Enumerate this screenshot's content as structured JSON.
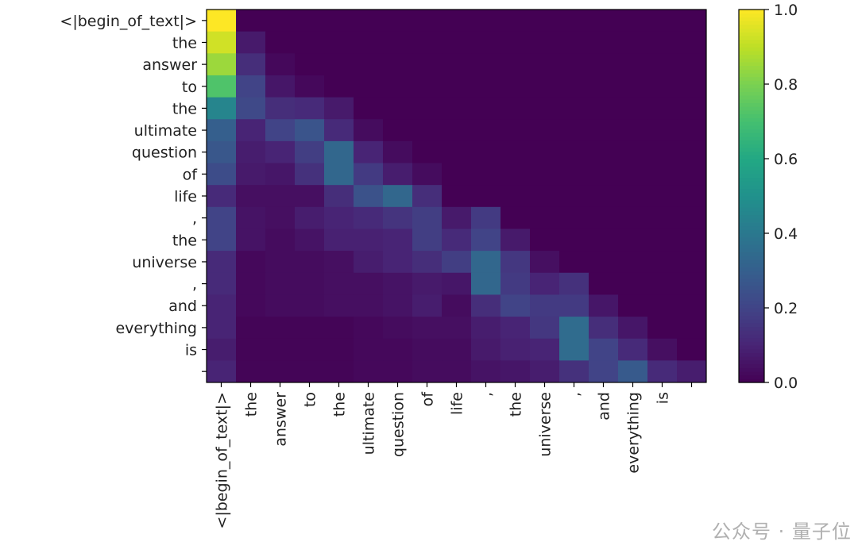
{
  "chart_data": {
    "type": "heatmap",
    "colormap": "viridis",
    "tokens": [
      "<|begin_of_text|>",
      "the",
      "answer",
      "to",
      "the",
      "ultimate",
      "question",
      "of",
      "life",
      ",",
      "the",
      "universe",
      ",",
      "and",
      "everything",
      "is",
      ""
    ],
    "values": [
      [
        1.0
      ],
      [
        0.93,
        0.07
      ],
      [
        0.85,
        0.13,
        0.02
      ],
      [
        0.72,
        0.2,
        0.06,
        0.02
      ],
      [
        0.45,
        0.22,
        0.13,
        0.12,
        0.07
      ],
      [
        0.3,
        0.1,
        0.2,
        0.26,
        0.12,
        0.03
      ],
      [
        0.27,
        0.08,
        0.1,
        0.18,
        0.33,
        0.1,
        0.03
      ],
      [
        0.23,
        0.07,
        0.06,
        0.14,
        0.33,
        0.17,
        0.08,
        0.03
      ],
      [
        0.12,
        0.04,
        0.04,
        0.04,
        0.13,
        0.25,
        0.33,
        0.13,
        0.0
      ],
      [
        0.2,
        0.05,
        0.04,
        0.08,
        0.1,
        0.12,
        0.15,
        0.18,
        0.07,
        0.17
      ],
      [
        0.2,
        0.05,
        0.03,
        0.05,
        0.09,
        0.09,
        0.1,
        0.18,
        0.12,
        0.2,
        0.07
      ],
      [
        0.12,
        0.02,
        0.03,
        0.03,
        0.04,
        0.08,
        0.1,
        0.13,
        0.18,
        0.33,
        0.16,
        0.04
      ],
      [
        0.12,
        0.02,
        0.03,
        0.03,
        0.04,
        0.04,
        0.05,
        0.07,
        0.06,
        0.33,
        0.17,
        0.1,
        0.14
      ],
      [
        0.1,
        0.02,
        0.03,
        0.03,
        0.04,
        0.04,
        0.05,
        0.08,
        0.03,
        0.13,
        0.2,
        0.17,
        0.17,
        0.06
      ],
      [
        0.1,
        0.01,
        0.01,
        0.01,
        0.01,
        0.02,
        0.03,
        0.04,
        0.04,
        0.08,
        0.1,
        0.16,
        0.35,
        0.13,
        0.06
      ],
      [
        0.08,
        0.01,
        0.01,
        0.01,
        0.01,
        0.02,
        0.02,
        0.03,
        0.03,
        0.07,
        0.09,
        0.1,
        0.35,
        0.2,
        0.12,
        0.04
      ],
      [
        0.1,
        0.01,
        0.01,
        0.01,
        0.01,
        0.02,
        0.02,
        0.03,
        0.03,
        0.05,
        0.06,
        0.08,
        0.14,
        0.2,
        0.28,
        0.12,
        0.08
      ]
    ],
    "colorbar": {
      "range": [
        0.0,
        1.0
      ],
      "ticks": [
        "0.0",
        "0.2",
        "0.4",
        "0.6",
        "0.8",
        "1.0"
      ]
    },
    "grid": false
  },
  "watermark": "公众号 · 量子位"
}
